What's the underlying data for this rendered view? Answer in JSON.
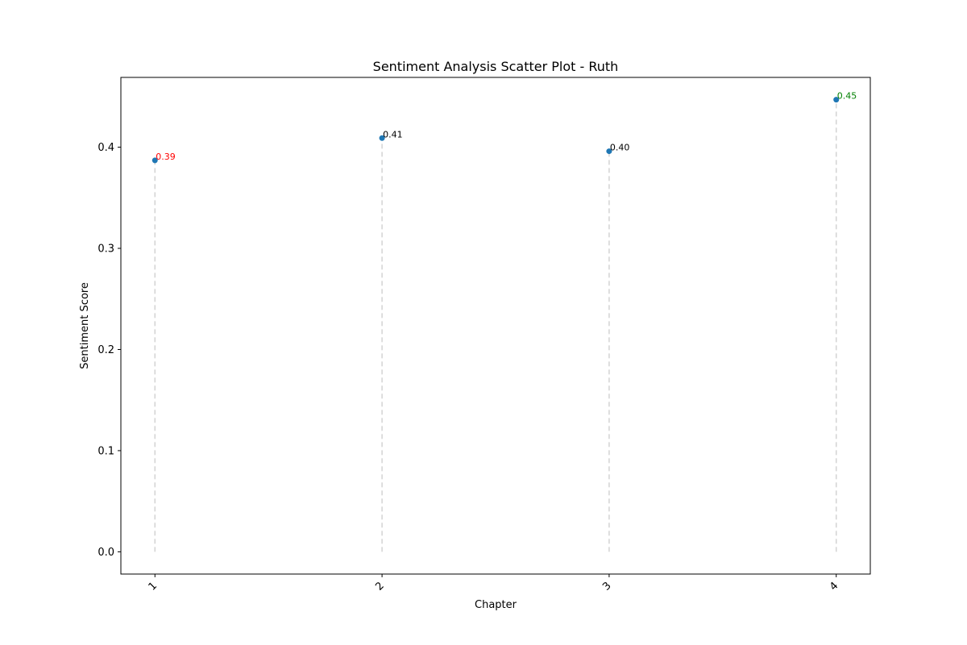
{
  "chart_data": {
    "type": "scatter",
    "title": "Sentiment Analysis Scatter Plot - Ruth",
    "xlabel": "Chapter",
    "ylabel": "Sentiment Score",
    "x": [
      1,
      2,
      3,
      4
    ],
    "x_tick_labels": [
      "1",
      "2",
      "3",
      "4"
    ],
    "values": [
      0.387,
      0.409,
      0.396,
      0.447
    ],
    "data_labels": [
      "0.39",
      "0.41",
      "0.40",
      "0.45"
    ],
    "data_label_colors": [
      "#ff0000",
      "#000000",
      "#000000",
      "#008000"
    ],
    "y_ticks": [
      0.0,
      0.1,
      0.2,
      0.3,
      0.4
    ],
    "y_tick_labels": [
      "0.0",
      "0.1",
      "0.2",
      "0.3",
      "0.4"
    ],
    "xlim": [
      0.85,
      4.15
    ],
    "ylim": [
      -0.022,
      0.469
    ],
    "marker_color": "#1f77b4",
    "stem_color": "#d3d3d3",
    "grid": false,
    "x_tick_rotation_deg": 45
  }
}
